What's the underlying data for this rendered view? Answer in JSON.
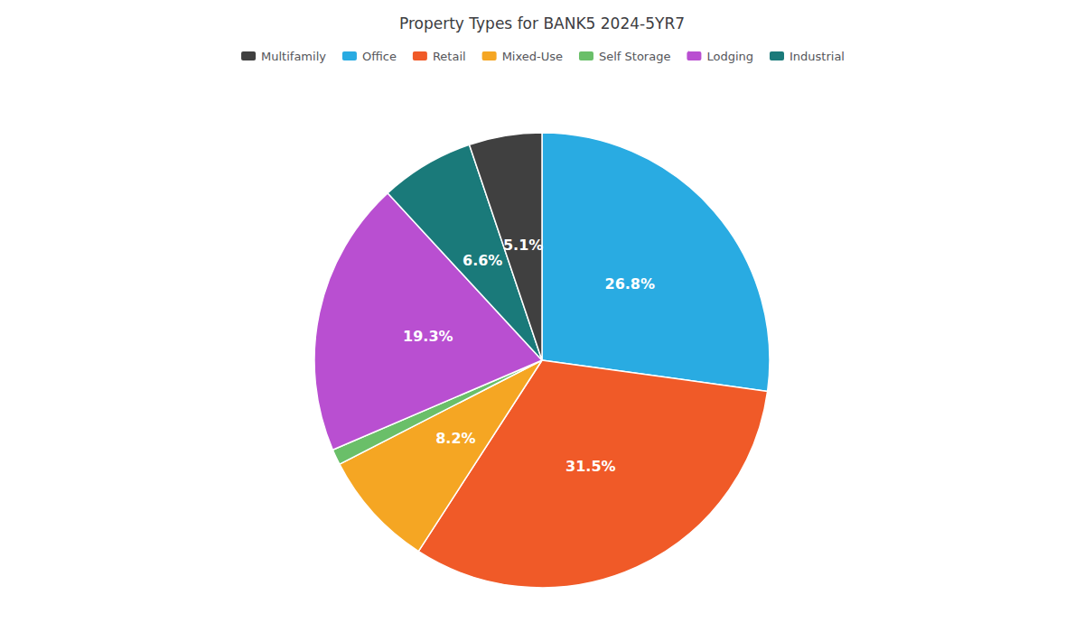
{
  "chart_data": {
    "type": "pie",
    "title": "Property Types for BANK5 2024-5YR7",
    "categories": [
      "Office",
      "Retail",
      "Mixed-Use",
      "Self Storage",
      "Lodging",
      "Industrial",
      "Multifamily"
    ],
    "values": [
      26.8,
      31.5,
      8.2,
      1.1,
      19.3,
      6.6,
      5.1
    ],
    "value_labels": [
      "26.8%",
      "31.5%",
      "8.2%",
      null,
      "19.3%",
      "6.6%",
      "5.1%"
    ],
    "colors": [
      "#29abe2",
      "#f05a28",
      "#f5a623",
      "#6abf69",
      "#b94fd1",
      "#1a7a7a",
      "#404040"
    ],
    "legend_labels": [
      "Multifamily",
      "Office",
      "Retail",
      "Mixed-Use",
      "Self Storage",
      "Lodging",
      "Industrial"
    ],
    "legend": "top",
    "data_labels": true
  }
}
